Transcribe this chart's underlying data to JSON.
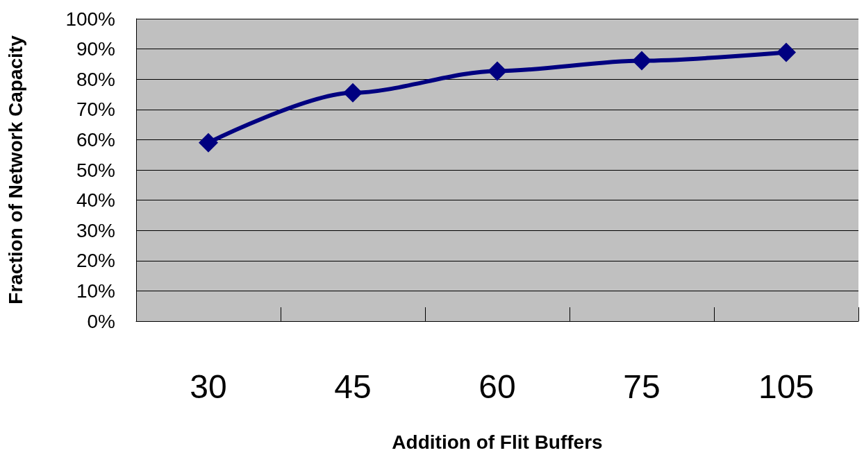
{
  "chart_data": {
    "type": "line",
    "xlabel": "Addition of Flit Buffers",
    "ylabel": "Fraction of Network Capacity",
    "categories": [
      "30",
      "45",
      "60",
      "75",
      "105"
    ],
    "series": [
      {
        "color": "#000080",
        "values": [
          59,
          75.5,
          82.7,
          86.1,
          88.9
        ]
      }
    ],
    "ylim": [
      0,
      100
    ],
    "yticks": [
      {
        "value": 0,
        "label": "0%"
      },
      {
        "value": 10,
        "label": "10%"
      },
      {
        "value": 20,
        "label": "20%"
      },
      {
        "value": 30,
        "label": "30%"
      },
      {
        "value": 40,
        "label": "40%"
      },
      {
        "value": 50,
        "label": "50%"
      },
      {
        "value": 60,
        "label": "60%"
      },
      {
        "value": 70,
        "label": "70%"
      },
      {
        "value": 80,
        "label": "80%"
      },
      {
        "value": 90,
        "label": "90%"
      },
      {
        "value": 100,
        "label": "100%"
      }
    ],
    "grid": "y",
    "marker": "diamond",
    "line_style": "solid"
  }
}
